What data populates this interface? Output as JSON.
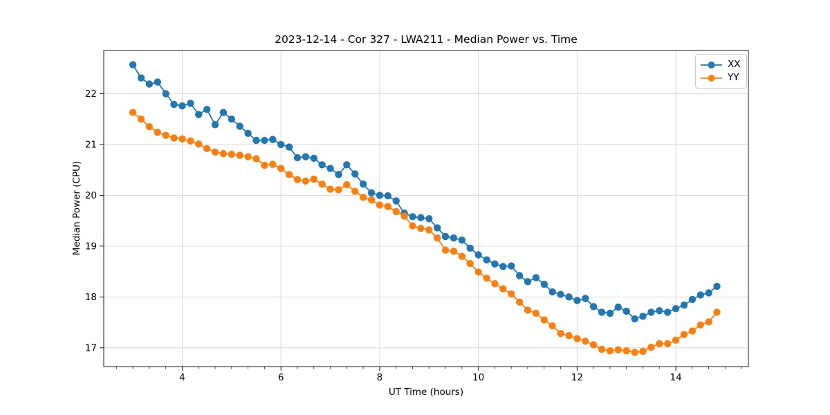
{
  "figure": {
    "title": "2023-12-14 - Cor 327 - LWA211 - Median Power vs. Time"
  },
  "chart_data": {
    "type": "line",
    "title": "2023-12-14 - Cor 327 - LWA211 - Median Power vs. Time",
    "xlabel": "UT Time (hours)",
    "ylabel": "Median Power (CPU)",
    "xlim": [
      2.41,
      15.47
    ],
    "ylim": [
      16.63,
      22.85
    ],
    "xticks": [
      4,
      6,
      8,
      10,
      12,
      14
    ],
    "yticks": [
      17,
      18,
      19,
      20,
      21,
      22
    ],
    "minor_xtick_step": 0.3333,
    "grid": true,
    "grid_color": "#d9d9d9",
    "spine_color": "#1a1a1a",
    "legend_position": "upper right",
    "marker": "circle",
    "x": [
      3.0,
      3.167,
      3.333,
      3.5,
      3.667,
      3.833,
      4.0,
      4.167,
      4.333,
      4.5,
      4.667,
      4.833,
      5.0,
      5.167,
      5.333,
      5.5,
      5.667,
      5.833,
      6.0,
      6.167,
      6.333,
      6.5,
      6.667,
      6.833,
      7.0,
      7.167,
      7.333,
      7.5,
      7.667,
      7.833,
      8.0,
      8.167,
      8.333,
      8.5,
      8.667,
      8.833,
      9.0,
      9.167,
      9.333,
      9.5,
      9.667,
      9.833,
      10.0,
      10.167,
      10.333,
      10.5,
      10.667,
      10.833,
      11.0,
      11.167,
      11.333,
      11.5,
      11.667,
      11.833,
      12.0,
      12.167,
      12.333,
      12.5,
      12.667,
      12.833,
      13.0,
      13.167,
      13.333,
      13.5,
      13.667,
      13.833,
      14.0,
      14.167,
      14.333,
      14.5,
      14.667,
      14.833
    ],
    "series": [
      {
        "name": "XX",
        "color": "#1f77b4",
        "values": [
          22.57,
          22.31,
          22.19,
          22.23,
          22.0,
          21.79,
          21.76,
          21.81,
          21.59,
          21.69,
          21.39,
          21.63,
          21.5,
          21.36,
          21.22,
          21.08,
          21.08,
          21.1,
          21.0,
          20.95,
          20.74,
          20.76,
          20.73,
          20.6,
          20.53,
          20.41,
          20.6,
          20.42,
          20.22,
          20.05,
          20.0,
          19.99,
          19.89,
          19.65,
          19.58,
          19.56,
          19.54,
          19.36,
          19.19,
          19.16,
          19.12,
          18.96,
          18.83,
          18.73,
          18.65,
          18.6,
          18.61,
          18.42,
          18.3,
          18.38,
          18.25,
          18.1,
          18.05,
          18.0,
          17.93,
          17.97,
          17.81,
          17.7,
          17.68,
          17.8,
          17.72,
          17.57,
          17.62,
          17.7,
          17.73,
          17.7,
          17.77,
          17.84,
          17.95,
          18.04,
          18.08,
          18.21
        ]
      },
      {
        "name": "YY",
        "color": "#ff7f0e",
        "values": [
          21.63,
          21.5,
          21.35,
          21.24,
          21.18,
          21.13,
          21.11,
          21.07,
          21.01,
          20.92,
          20.85,
          20.82,
          20.81,
          20.79,
          20.76,
          20.72,
          20.59,
          20.61,
          20.53,
          20.41,
          20.31,
          20.28,
          20.32,
          20.22,
          20.12,
          20.11,
          20.21,
          20.08,
          19.96,
          19.91,
          19.81,
          19.78,
          19.68,
          19.59,
          19.4,
          19.35,
          19.32,
          19.16,
          18.92,
          18.9,
          18.8,
          18.66,
          18.49,
          18.37,
          18.26,
          18.16,
          18.06,
          17.9,
          17.74,
          17.68,
          17.55,
          17.43,
          17.28,
          17.24,
          17.18,
          17.13,
          17.06,
          16.97,
          16.94,
          16.96,
          16.94,
          16.91,
          16.93,
          17.01,
          17.08,
          17.08,
          17.15,
          17.26,
          17.33,
          17.45,
          17.51,
          17.7
        ]
      }
    ]
  },
  "legend": {
    "items": [
      {
        "label": "XX",
        "color": "#1f77b4"
      },
      {
        "label": "YY",
        "color": "#ff7f0e"
      }
    ]
  }
}
